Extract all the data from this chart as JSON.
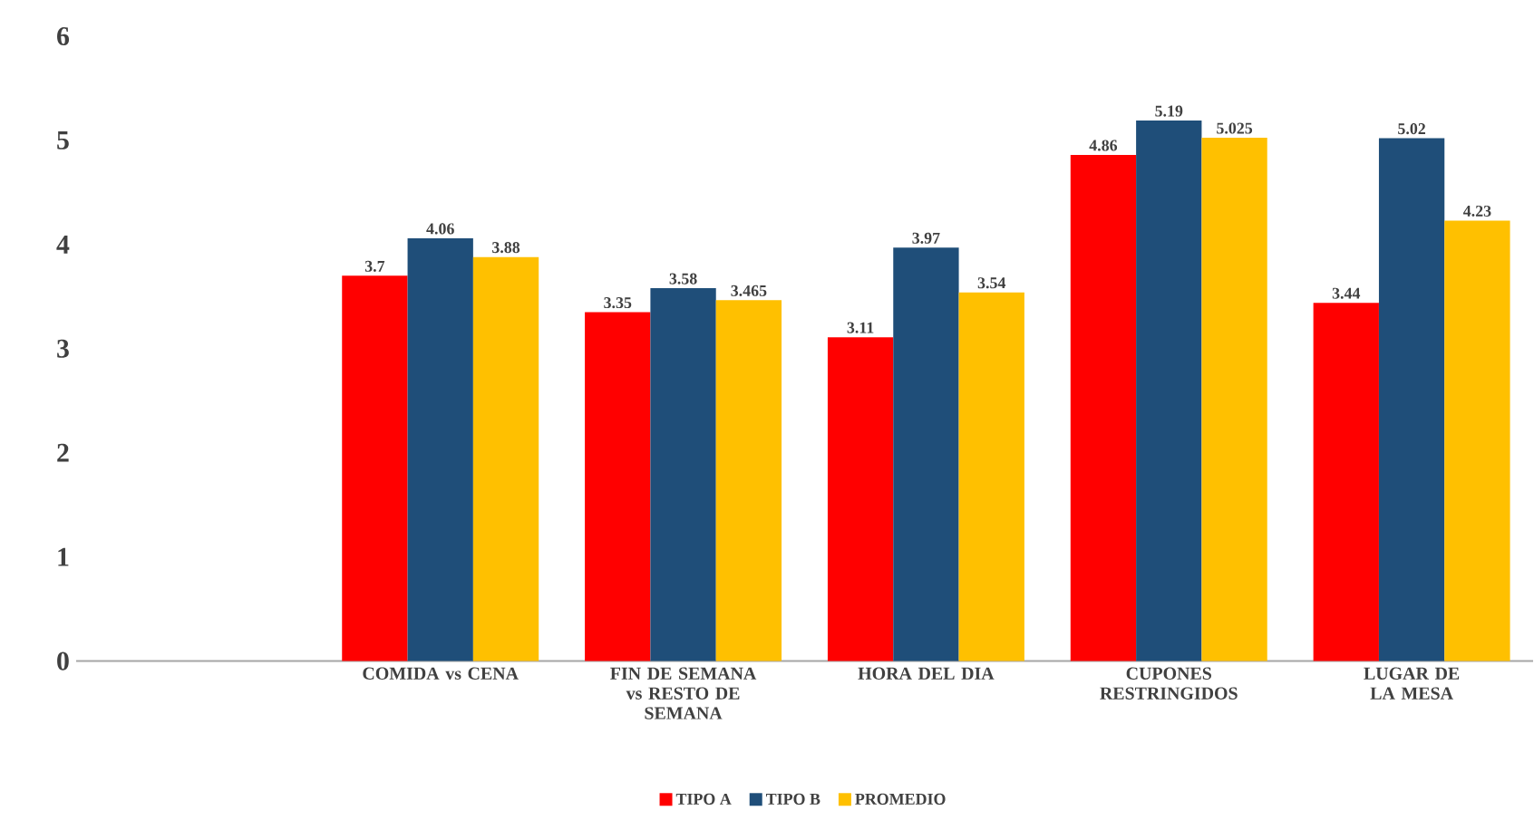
{
  "chart_data": {
    "type": "bar",
    "categories": [
      null,
      "COMIDA vs CENA",
      "FIN DE SEMANA vs RESTO DE SEMANA",
      "HORA DEL DIA",
      "CUPONES RESTRINGIDOS",
      "LUGAR DE LA MESA"
    ],
    "series": [
      {
        "name": "TIPO A",
        "color": "#ff0000",
        "values": [
          null,
          3.7,
          3.35,
          3.11,
          4.86,
          3.44
        ]
      },
      {
        "name": "TIPO B",
        "color": "#1f4e79",
        "values": [
          null,
          4.06,
          3.58,
          3.97,
          5.19,
          5.02
        ]
      },
      {
        "name": "PROMEDIO",
        "color": "#ffc000",
        "values": [
          null,
          3.88,
          3.465,
          3.54,
          5.025,
          4.23
        ]
      }
    ],
    "ylim": [
      0,
      6
    ],
    "yticks": [
      0,
      1,
      2,
      3,
      4,
      5,
      6
    ],
    "legend": "bottom",
    "data_labels": true
  }
}
